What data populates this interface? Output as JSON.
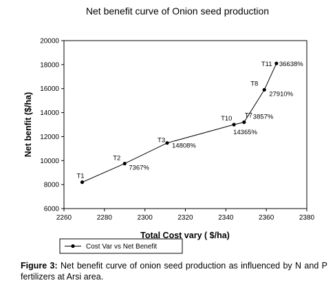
{
  "chart_data": {
    "type": "line",
    "title": "Net benefit curve of Onion seed production",
    "xlabel": "Total Cost vary ( $/ha)",
    "ylabel": "Net benfit ($/ha)",
    "xlim": [
      2260,
      2380
    ],
    "ylim": [
      6000,
      20000
    ],
    "xticks": [
      2260,
      2280,
      2300,
      2320,
      2340,
      2360,
      2380
    ],
    "yticks": [
      6000,
      8000,
      10000,
      12000,
      14000,
      16000,
      18000,
      20000
    ],
    "grid": false,
    "legend": {
      "position": "bottom-left",
      "entries": [
        "Cost Var vs Net Benefit"
      ]
    },
    "series": [
      {
        "name": "Cost Var vs Net Benefit",
        "color": "#000000",
        "points": [
          {
            "label": "T1",
            "x": 2269,
            "y": 8200,
            "annotation": ""
          },
          {
            "label": "T2",
            "x": 2290,
            "y": 9750,
            "annotation": "7367%"
          },
          {
            "label": "T3",
            "x": 2311,
            "y": 11470,
            "annotation": "14808%"
          },
          {
            "label": "T10",
            "x": 2344,
            "y": 13000,
            "annotation": "14365%"
          },
          {
            "label": "T7",
            "x": 2349,
            "y": 13200,
            "annotation": "3857%"
          },
          {
            "label": "T8",
            "x": 2359,
            "y": 15900,
            "annotation": "27910%"
          },
          {
            "label": "T11",
            "x": 2365,
            "y": 18100,
            "annotation": "36638%"
          }
        ]
      }
    ]
  },
  "caption": {
    "figure_label": "Figure 3:",
    "text": "Net benefit curve of onion seed production as influenced by N and P fertilizers at Arsi area."
  }
}
